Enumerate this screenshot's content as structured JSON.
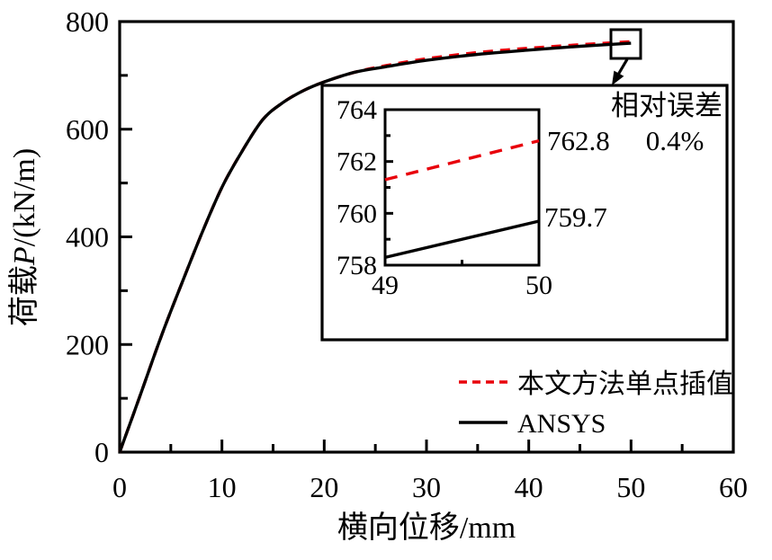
{
  "chart_data": {
    "type": "line",
    "title": "",
    "xlabel": "横向位移/mm",
    "ylabel_prefix": "荷载",
    "ylabel_var": "P",
    "ylabel_suffix": "/(kN/m)",
    "xlim": [
      0,
      60
    ],
    "ylim": [
      0,
      800
    ],
    "xticks_major": [
      0,
      10,
      20,
      30,
      40,
      50,
      60
    ],
    "xticks_minor": [
      5,
      15,
      25,
      35,
      45,
      55
    ],
    "yticks_major": [
      0,
      200,
      400,
      600,
      800
    ],
    "yticks_minor": [
      100,
      300,
      500,
      700
    ],
    "grid": false,
    "legend_position": "lower-right-inside",
    "series": [
      {
        "name": "本文方法单点插值",
        "color": "#e8000b",
        "style": "dashed",
        "x": [
          0,
          2,
          4,
          6,
          8,
          10,
          12,
          14,
          16,
          18,
          20,
          23,
          26,
          30,
          35,
          40,
          45,
          50
        ],
        "y": [
          0,
          105,
          212,
          310,
          405,
          492,
          560,
          618,
          650,
          672,
          688,
          706,
          718,
          731,
          742.5,
          750.5,
          757,
          762.8
        ]
      },
      {
        "name": "ANSYS",
        "color": "#000000",
        "style": "solid",
        "x": [
          0,
          2,
          4,
          6,
          8,
          10,
          12,
          14,
          16,
          18,
          20,
          23,
          26,
          30,
          35,
          40,
          45,
          50
        ],
        "y": [
          0,
          105,
          212,
          310,
          405,
          492,
          560,
          618,
          650,
          672,
          688,
          706,
          716,
          728,
          739,
          747,
          754,
          759.7
        ]
      }
    ],
    "inset": {
      "xlim": [
        49,
        50
      ],
      "ylim": [
        758,
        764
      ],
      "xticks_major": [
        49,
        50
      ],
      "xticks_minor": [
        49.5
      ],
      "yticks_major": [
        758,
        760,
        762,
        764
      ],
      "yticks_minor": [
        759,
        761,
        763
      ],
      "series": [
        {
          "name": "本文方法单点插值",
          "color": "#e8000b",
          "style": "dashed",
          "x": [
            49,
            50
          ],
          "y": [
            761.3,
            762.8
          ]
        },
        {
          "name": "ANSYS",
          "color": "#000000",
          "style": "solid",
          "x": [
            49,
            50
          ],
          "y": [
            758.3,
            759.7
          ]
        }
      ],
      "end_labels": [
        "762.8",
        "759.7"
      ]
    },
    "annotation": {
      "line1": "相对误差",
      "line2": "0.4%"
    }
  }
}
